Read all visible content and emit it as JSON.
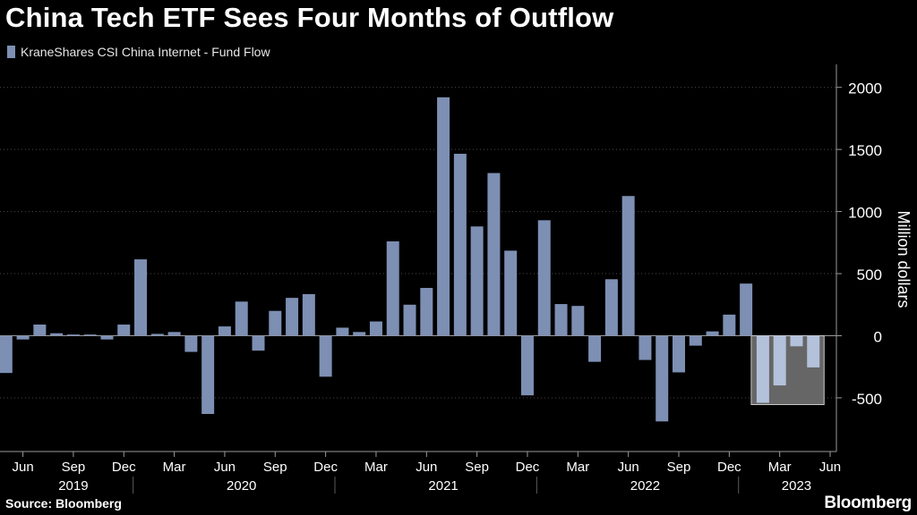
{
  "header": {
    "title": "China Tech ETF Sees Four Months of Outflow"
  },
  "legend": {
    "label": "KraneShares CSI China Internet - Fund Flow",
    "color": "#7d8fb3"
  },
  "footer": {
    "source": "Source: Bloomberg",
    "brand": "Bloomberg"
  },
  "chart_data": {
    "type": "bar",
    "ylabel": "Million dollars",
    "ylim": [
      -900,
      2200
    ],
    "yticks": [
      2000,
      1500,
      1000,
      500,
      0,
      -500
    ],
    "ytick_labels": [
      "2000",
      "1500",
      "1000",
      "500",
      "0",
      "-500"
    ],
    "grid": true,
    "legend_position": "top-left",
    "bar_color": "#7d8fb3",
    "highlight_color": "#b3c1db",
    "highlight_box_color": "#666666",
    "months": [
      "May 2019",
      "Jun 2019",
      "Jul 2019",
      "Aug 2019",
      "Sep 2019",
      "Oct 2019",
      "Nov 2019",
      "Dec 2019",
      "Jan 2020",
      "Feb 2020",
      "Mar 2020",
      "Apr 2020",
      "May 2020",
      "Jun 2020",
      "Jul 2020",
      "Aug 2020",
      "Sep 2020",
      "Oct 2020",
      "Nov 2020",
      "Dec 2020",
      "Jan 2021",
      "Feb 2021",
      "Mar 2021",
      "Apr 2021",
      "May 2021",
      "Jun 2021",
      "Jul 2021",
      "Aug 2021",
      "Sep 2021",
      "Oct 2021",
      "Nov 2021",
      "Dec 2021",
      "Jan 2022",
      "Feb 2022",
      "Mar 2022",
      "Apr 2022",
      "May 2022",
      "Jun 2022",
      "Jul 2022",
      "Aug 2022",
      "Sep 2022",
      "Oct 2022",
      "Nov 2022",
      "Dec 2022",
      "Jan 2023",
      "Feb 2023",
      "Mar 2023",
      "Apr 2023",
      "May 2023",
      "Jun 2023"
    ],
    "values": [
      -300,
      -30,
      90,
      20,
      10,
      10,
      -30,
      90,
      615,
      15,
      30,
      -130,
      -630,
      75,
      275,
      -120,
      200,
      305,
      335,
      -330,
      65,
      30,
      115,
      760,
      250,
      385,
      1920,
      1465,
      880,
      1310,
      685,
      -480,
      930,
      255,
      240,
      -210,
      455,
      1125,
      -195,
      -690,
      -295,
      -80,
      35,
      170,
      420,
      -540,
      -400,
      -85,
      -255,
      0
    ],
    "highlight_months": [
      "Feb 2023",
      "Mar 2023",
      "Apr 2023",
      "May 2023"
    ],
    "xtick_labels": [
      {
        "label": "Jun",
        "month": "Jun 2019"
      },
      {
        "label": "Sep",
        "month": "Sep 2019"
      },
      {
        "label": "Dec",
        "month": "Dec 2019"
      },
      {
        "label": "Mar",
        "month": "Mar 2020"
      },
      {
        "label": "Jun",
        "month": "Jun 2020"
      },
      {
        "label": "Sep",
        "month": "Sep 2020"
      },
      {
        "label": "Dec",
        "month": "Dec 2020"
      },
      {
        "label": "Mar",
        "month": "Mar 2021"
      },
      {
        "label": "Jun",
        "month": "Jun 2021"
      },
      {
        "label": "Sep",
        "month": "Sep 2021"
      },
      {
        "label": "Dec",
        "month": "Dec 2021"
      },
      {
        "label": "Mar",
        "month": "Mar 2022"
      },
      {
        "label": "Jun",
        "month": "Jun 2022"
      },
      {
        "label": "Sep",
        "month": "Sep 2022"
      },
      {
        "label": "Dec",
        "month": "Dec 2022"
      },
      {
        "label": "Mar",
        "month": "Mar 2023"
      },
      {
        "label": "Jun",
        "month": "Jun 2023"
      }
    ],
    "year_labels": [
      {
        "label": "2019",
        "month": "Sep 2019"
      },
      {
        "label": "2020",
        "month": "Jul 2020"
      },
      {
        "label": "2021",
        "month": "Jul 2021"
      },
      {
        "label": "2022",
        "month": "Jul 2022"
      },
      {
        "label": "2023",
        "month": "Apr 2023"
      }
    ],
    "year_divider_months": [
      "Jan 2020",
      "Jan 2021",
      "Jan 2022",
      "Jan 2023"
    ]
  }
}
